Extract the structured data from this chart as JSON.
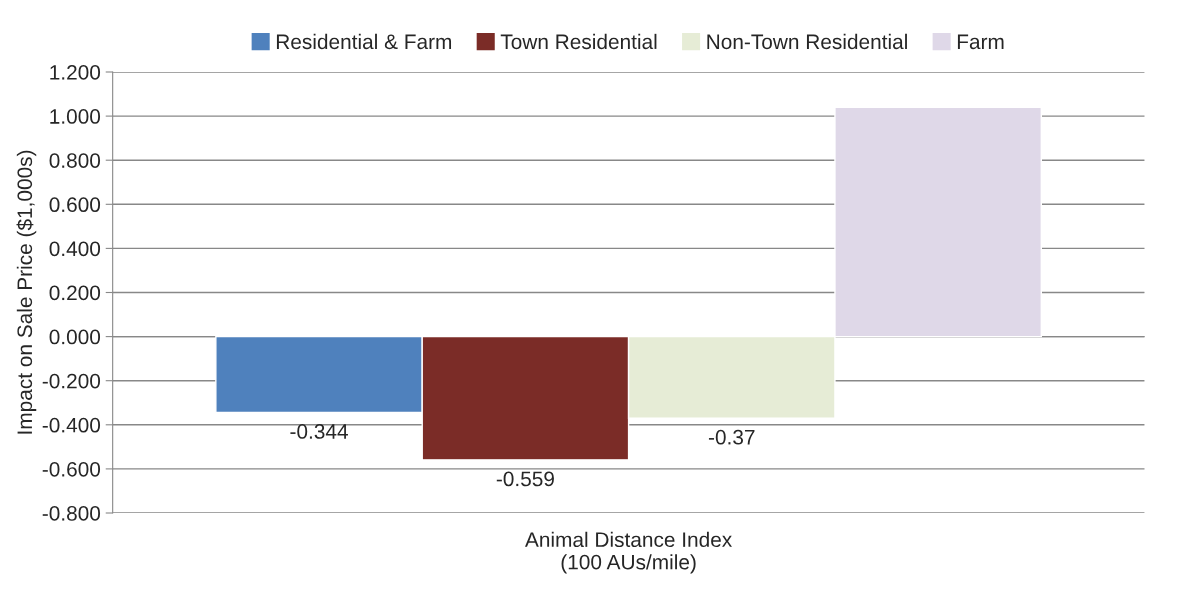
{
  "chart_data": {
    "type": "bar",
    "xlabel": "Animal Distance Index\n(100 AUs/mile)",
    "ylabel": "Impact on Sale Price ($1,000s)",
    "categories": [
      null
    ],
    "series": [
      {
        "name": "Residential & Farm",
        "color": "#4f81bd",
        "values": [
          -0.344
        ],
        "value_labels": [
          "-0.344"
        ]
      },
      {
        "name": "Town Residential",
        "color": "#7b2c27",
        "values": [
          -0.559
        ],
        "value_labels": [
          "-0.559"
        ]
      },
      {
        "name": "Non-Town Residential",
        "color": "#e6ecd6",
        "values": [
          -0.37
        ],
        "value_labels": [
          "-0.37"
        ]
      },
      {
        "name": "Farm",
        "color": "#dfd8e8",
        "values": [
          1.04
        ],
        "value_labels": [
          null
        ]
      }
    ],
    "ylim": [
      -0.8,
      1.2
    ],
    "yticks": [
      {
        "value": -0.8,
        "label": "-0.800"
      },
      {
        "value": -0.6,
        "label": "-0.600"
      },
      {
        "value": -0.4,
        "label": "-0.400"
      },
      {
        "value": -0.2,
        "label": "-0.200"
      },
      {
        "value": 0,
        "label": "0.000"
      },
      {
        "value": 0.2,
        "label": "0.200"
      },
      {
        "value": 0.4,
        "label": "0.400"
      },
      {
        "value": 0.6,
        "label": "0.600"
      },
      {
        "value": 0.8,
        "label": "0.800"
      },
      {
        "value": 1.0,
        "label": "1.000"
      },
      {
        "value": 1.2,
        "label": "1.200"
      }
    ],
    "grid": "y",
    "legend": "top"
  }
}
